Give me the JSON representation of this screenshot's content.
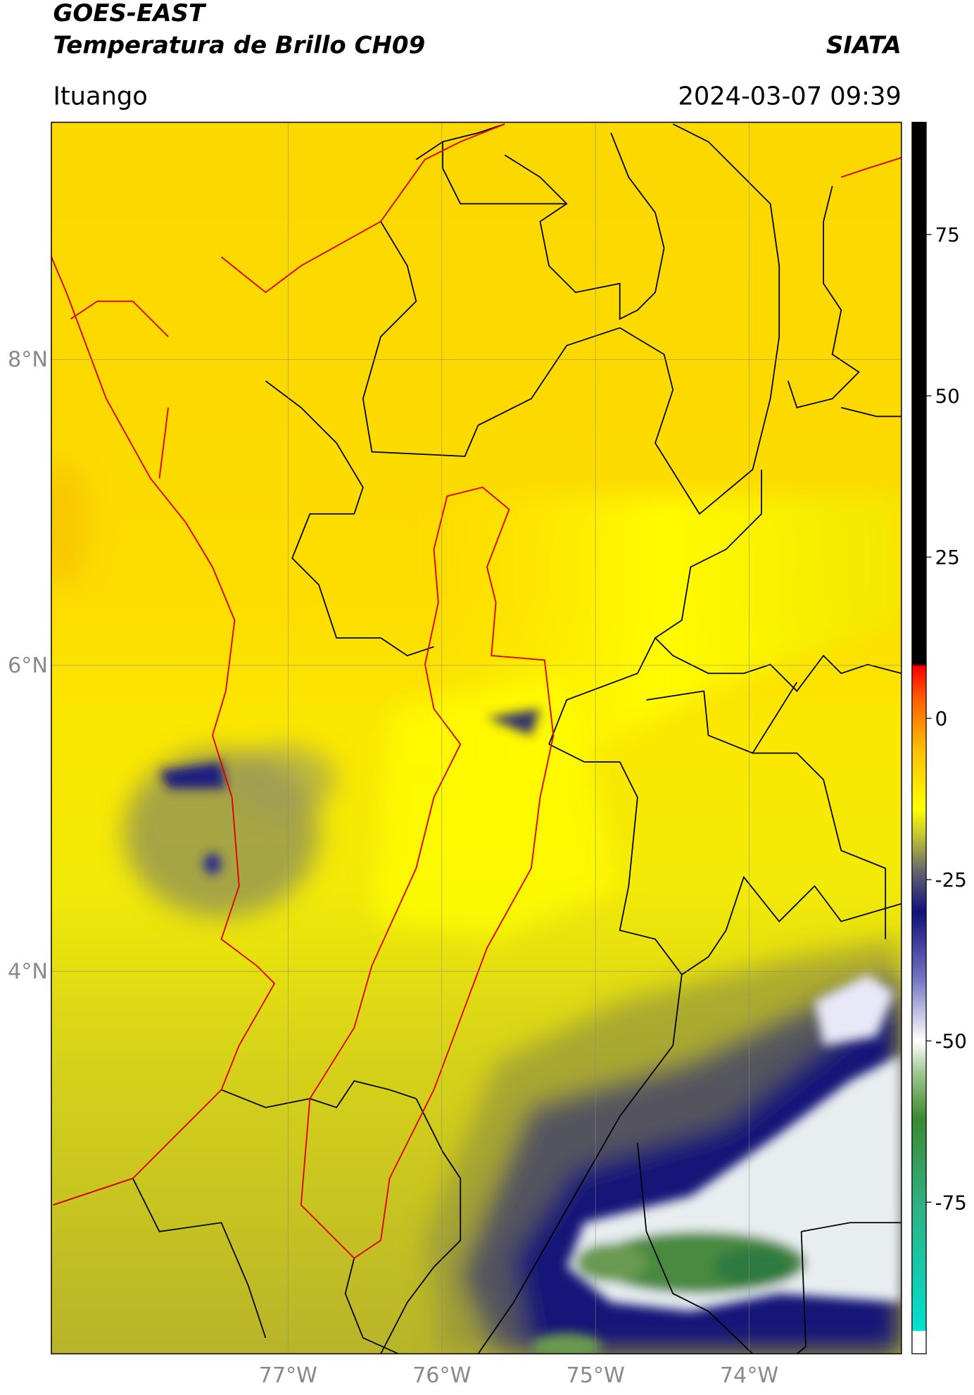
{
  "header": {
    "title": "GOES-EAST",
    "subtitle": "Temperatura de Brillo CH09",
    "brand": "SIATA",
    "place": "Ituango",
    "datetime": "2024-03-07 09:39"
  },
  "map": {
    "latlim": [
      1.5,
      9.55
    ],
    "lonlim": [
      -78.54,
      -73.01
    ],
    "latticks": [
      {
        "value": 8,
        "label": "8°N"
      },
      {
        "value": 6,
        "label": "6°N"
      },
      {
        "value": 4,
        "label": "4°N"
      }
    ],
    "lonticks": [
      {
        "value": -77,
        "label": "77°W"
      },
      {
        "value": -76,
        "label": "76°W"
      },
      {
        "value": -75,
        "label": "75°W"
      },
      {
        "value": -74,
        "label": "74°W"
      }
    ],
    "grid": true
  },
  "colorbar": {
    "lim": [
      -98.5,
      92.4
    ],
    "ticks": [
      75,
      50,
      25,
      0,
      -25,
      -50,
      -75
    ],
    "stops": [
      {
        "value": -98.5,
        "color": "#ffffff"
      },
      {
        "value": -95,
        "color": "#ffffff"
      },
      {
        "value": -94.9,
        "color": "#00e0d0"
      },
      {
        "value": -75,
        "color": "#30b080"
      },
      {
        "value": -62,
        "color": "#3a8a30"
      },
      {
        "value": -55,
        "color": "#a0c890"
      },
      {
        "value": -50,
        "color": "#ffffff"
      },
      {
        "value": -40,
        "color": "#7070c0"
      },
      {
        "value": -30,
        "color": "#10107a"
      },
      {
        "value": -24,
        "color": "#606070"
      },
      {
        "value": -18,
        "color": "#c8c830"
      },
      {
        "value": -14,
        "color": "#ffff00"
      },
      {
        "value": -5,
        "color": "#ffc000"
      },
      {
        "value": 3,
        "color": "#ff6000"
      },
      {
        "value": 8,
        "color": "#ff0000"
      },
      {
        "value": 8.5,
        "color": "#000000"
      },
      {
        "value": 92.4,
        "color": "#000000"
      }
    ]
  }
}
